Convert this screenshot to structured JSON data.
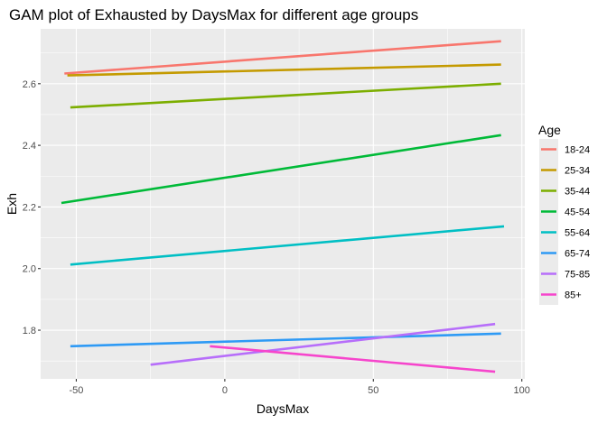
{
  "chart_data": {
    "type": "line",
    "title": "GAM plot of Exhausted by DaysMax for different age groups",
    "xlabel": "DaysMax",
    "ylabel": "Exh",
    "xlim": [
      -62,
      101
    ],
    "ylim": [
      1.642,
      2.778
    ],
    "xticks": [
      -50,
      0,
      50,
      100
    ],
    "yticks": [
      1.8,
      2.0,
      2.2,
      2.4,
      2.6
    ],
    "xtick_labels": [
      "-50",
      "0",
      "50",
      "100"
    ],
    "ytick_labels": [
      "1.8",
      "2.0",
      "2.2",
      "2.4",
      "2.6"
    ],
    "grid": true,
    "legend": {
      "title": "Age",
      "position": "right"
    },
    "series": [
      {
        "name": "18-24",
        "color": "#F8766D",
        "x": [
          -54,
          93
        ],
        "y": [
          2.633,
          2.738
        ]
      },
      {
        "name": "25-34",
        "color": "#C49A00",
        "x": [
          -53,
          93
        ],
        "y": [
          2.627,
          2.662
        ]
      },
      {
        "name": "35-44",
        "color": "#7CAE00",
        "x": [
          -52,
          93
        ],
        "y": [
          2.523,
          2.6
        ]
      },
      {
        "name": "45-54",
        "color": "#00BA38",
        "x": [
          -55,
          93
        ],
        "y": [
          2.213,
          2.433
        ]
      },
      {
        "name": "55-64",
        "color": "#00BFC4",
        "x": [
          -52,
          94
        ],
        "y": [
          2.013,
          2.137
        ]
      },
      {
        "name": "65-74",
        "color": "#2E9AF5",
        "x": [
          -52,
          93
        ],
        "y": [
          1.748,
          1.789
        ]
      },
      {
        "name": "75-85",
        "color": "#B76EFA",
        "x": [
          -25,
          91
        ],
        "y": [
          1.688,
          1.82
        ]
      },
      {
        "name": "85+",
        "color": "#F645CC",
        "x": [
          -5,
          91
        ],
        "y": [
          1.748,
          1.665
        ]
      }
    ]
  }
}
